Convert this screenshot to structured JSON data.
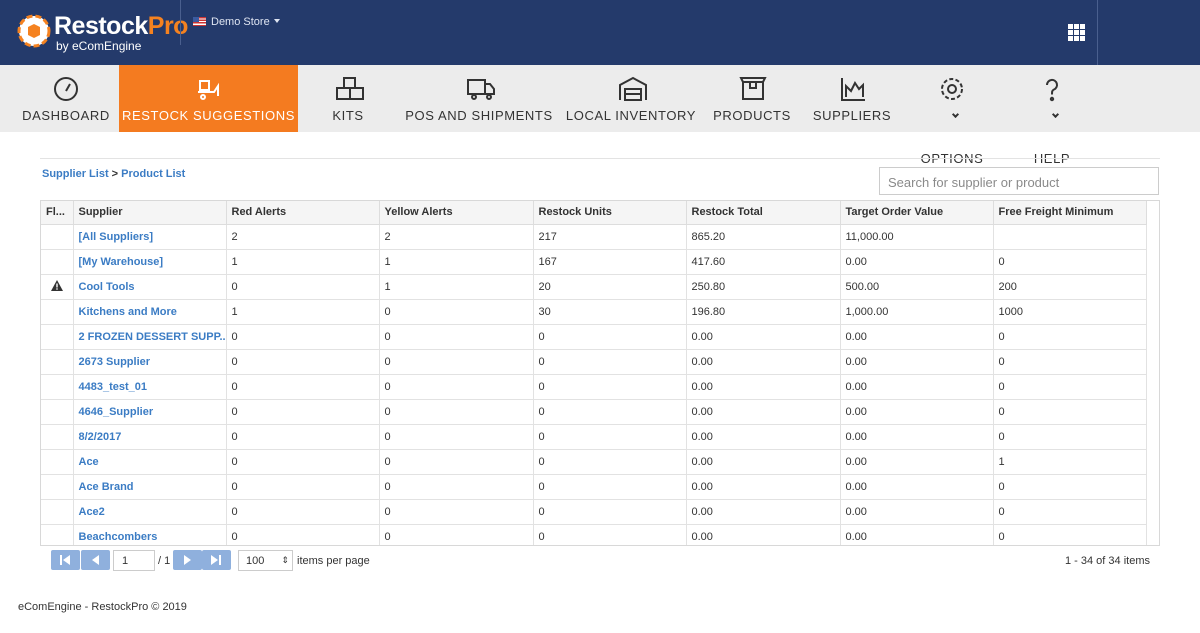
{
  "header": {
    "brand": {
      "main": "Restock",
      "accent": "Pro",
      "tagline": "by eComEngine"
    },
    "store": "Demo Store"
  },
  "nav": {
    "items": [
      "DASHBOARD",
      "RESTOCK SUGGESTIONS",
      "KITS",
      "POS AND SHIPMENTS",
      "LOCAL INVENTORY",
      "PRODUCTS",
      "SUPPLIERS",
      "OPTIONS",
      "HELP"
    ],
    "active": 1
  },
  "breadcrumb": [
    "Supplier List",
    "Product List"
  ],
  "search": {
    "placeholder": "Search for supplier or product"
  },
  "table": {
    "columns": [
      "Fl...",
      "Supplier",
      "Red Alerts",
      "Yellow Alerts",
      "Restock Units",
      "Restock Total",
      "Target Order Value",
      "Free Freight Minimum"
    ],
    "rows": [
      {
        "cells": [
          "[All Suppliers]",
          "2",
          "2",
          "217",
          "865.20",
          "11,000.00",
          null
        ]
      },
      {
        "cells": [
          "[My Warehouse]",
          "1",
          "1",
          "167",
          "417.60",
          "0.00",
          "0"
        ]
      },
      {
        "flag": "warning",
        "cells": [
          "Cool Tools",
          "0",
          "1",
          "20",
          "250.80",
          "500.00",
          "200"
        ]
      },
      {
        "cells": [
          "Kitchens and More",
          "1",
          "0",
          "30",
          "196.80",
          "1,000.00",
          "1000"
        ]
      },
      {
        "cells": [
          "2 FROZEN DESSERT SUPP...",
          "0",
          "0",
          "0",
          "0.00",
          "0.00",
          "0"
        ]
      },
      {
        "cells": [
          "2673 Supplier",
          "0",
          "0",
          "0",
          "0.00",
          "0.00",
          "0"
        ]
      },
      {
        "cells": [
          "4483_test_01",
          "0",
          "0",
          "0",
          "0.00",
          "0.00",
          "0"
        ]
      },
      {
        "cells": [
          "4646_Supplier",
          "0",
          "0",
          "0",
          "0.00",
          "0.00",
          "0"
        ]
      },
      {
        "cells": [
          "8/2/2017",
          "0",
          "0",
          "0",
          "0.00",
          "0.00",
          "0"
        ]
      },
      {
        "cells": [
          "Ace",
          "0",
          "0",
          "0",
          "0.00",
          "0.00",
          "1"
        ]
      },
      {
        "cells": [
          "Ace Brand",
          "0",
          "0",
          "0",
          "0.00",
          "0.00",
          "0"
        ]
      },
      {
        "cells": [
          "Ace2",
          "0",
          "0",
          "0",
          "0.00",
          "0.00",
          "0"
        ]
      },
      {
        "cells": [
          "Beachcombers",
          "0",
          "0",
          "0",
          "0.00",
          "0.00",
          "0"
        ]
      }
    ]
  },
  "pager": {
    "page": "1",
    "of": "/ 1",
    "page_size": "100",
    "page_size_label": "items per page",
    "summary": "1 - 34 of 34 items"
  },
  "footer": "eComEngine - RestockPro © 2019"
}
